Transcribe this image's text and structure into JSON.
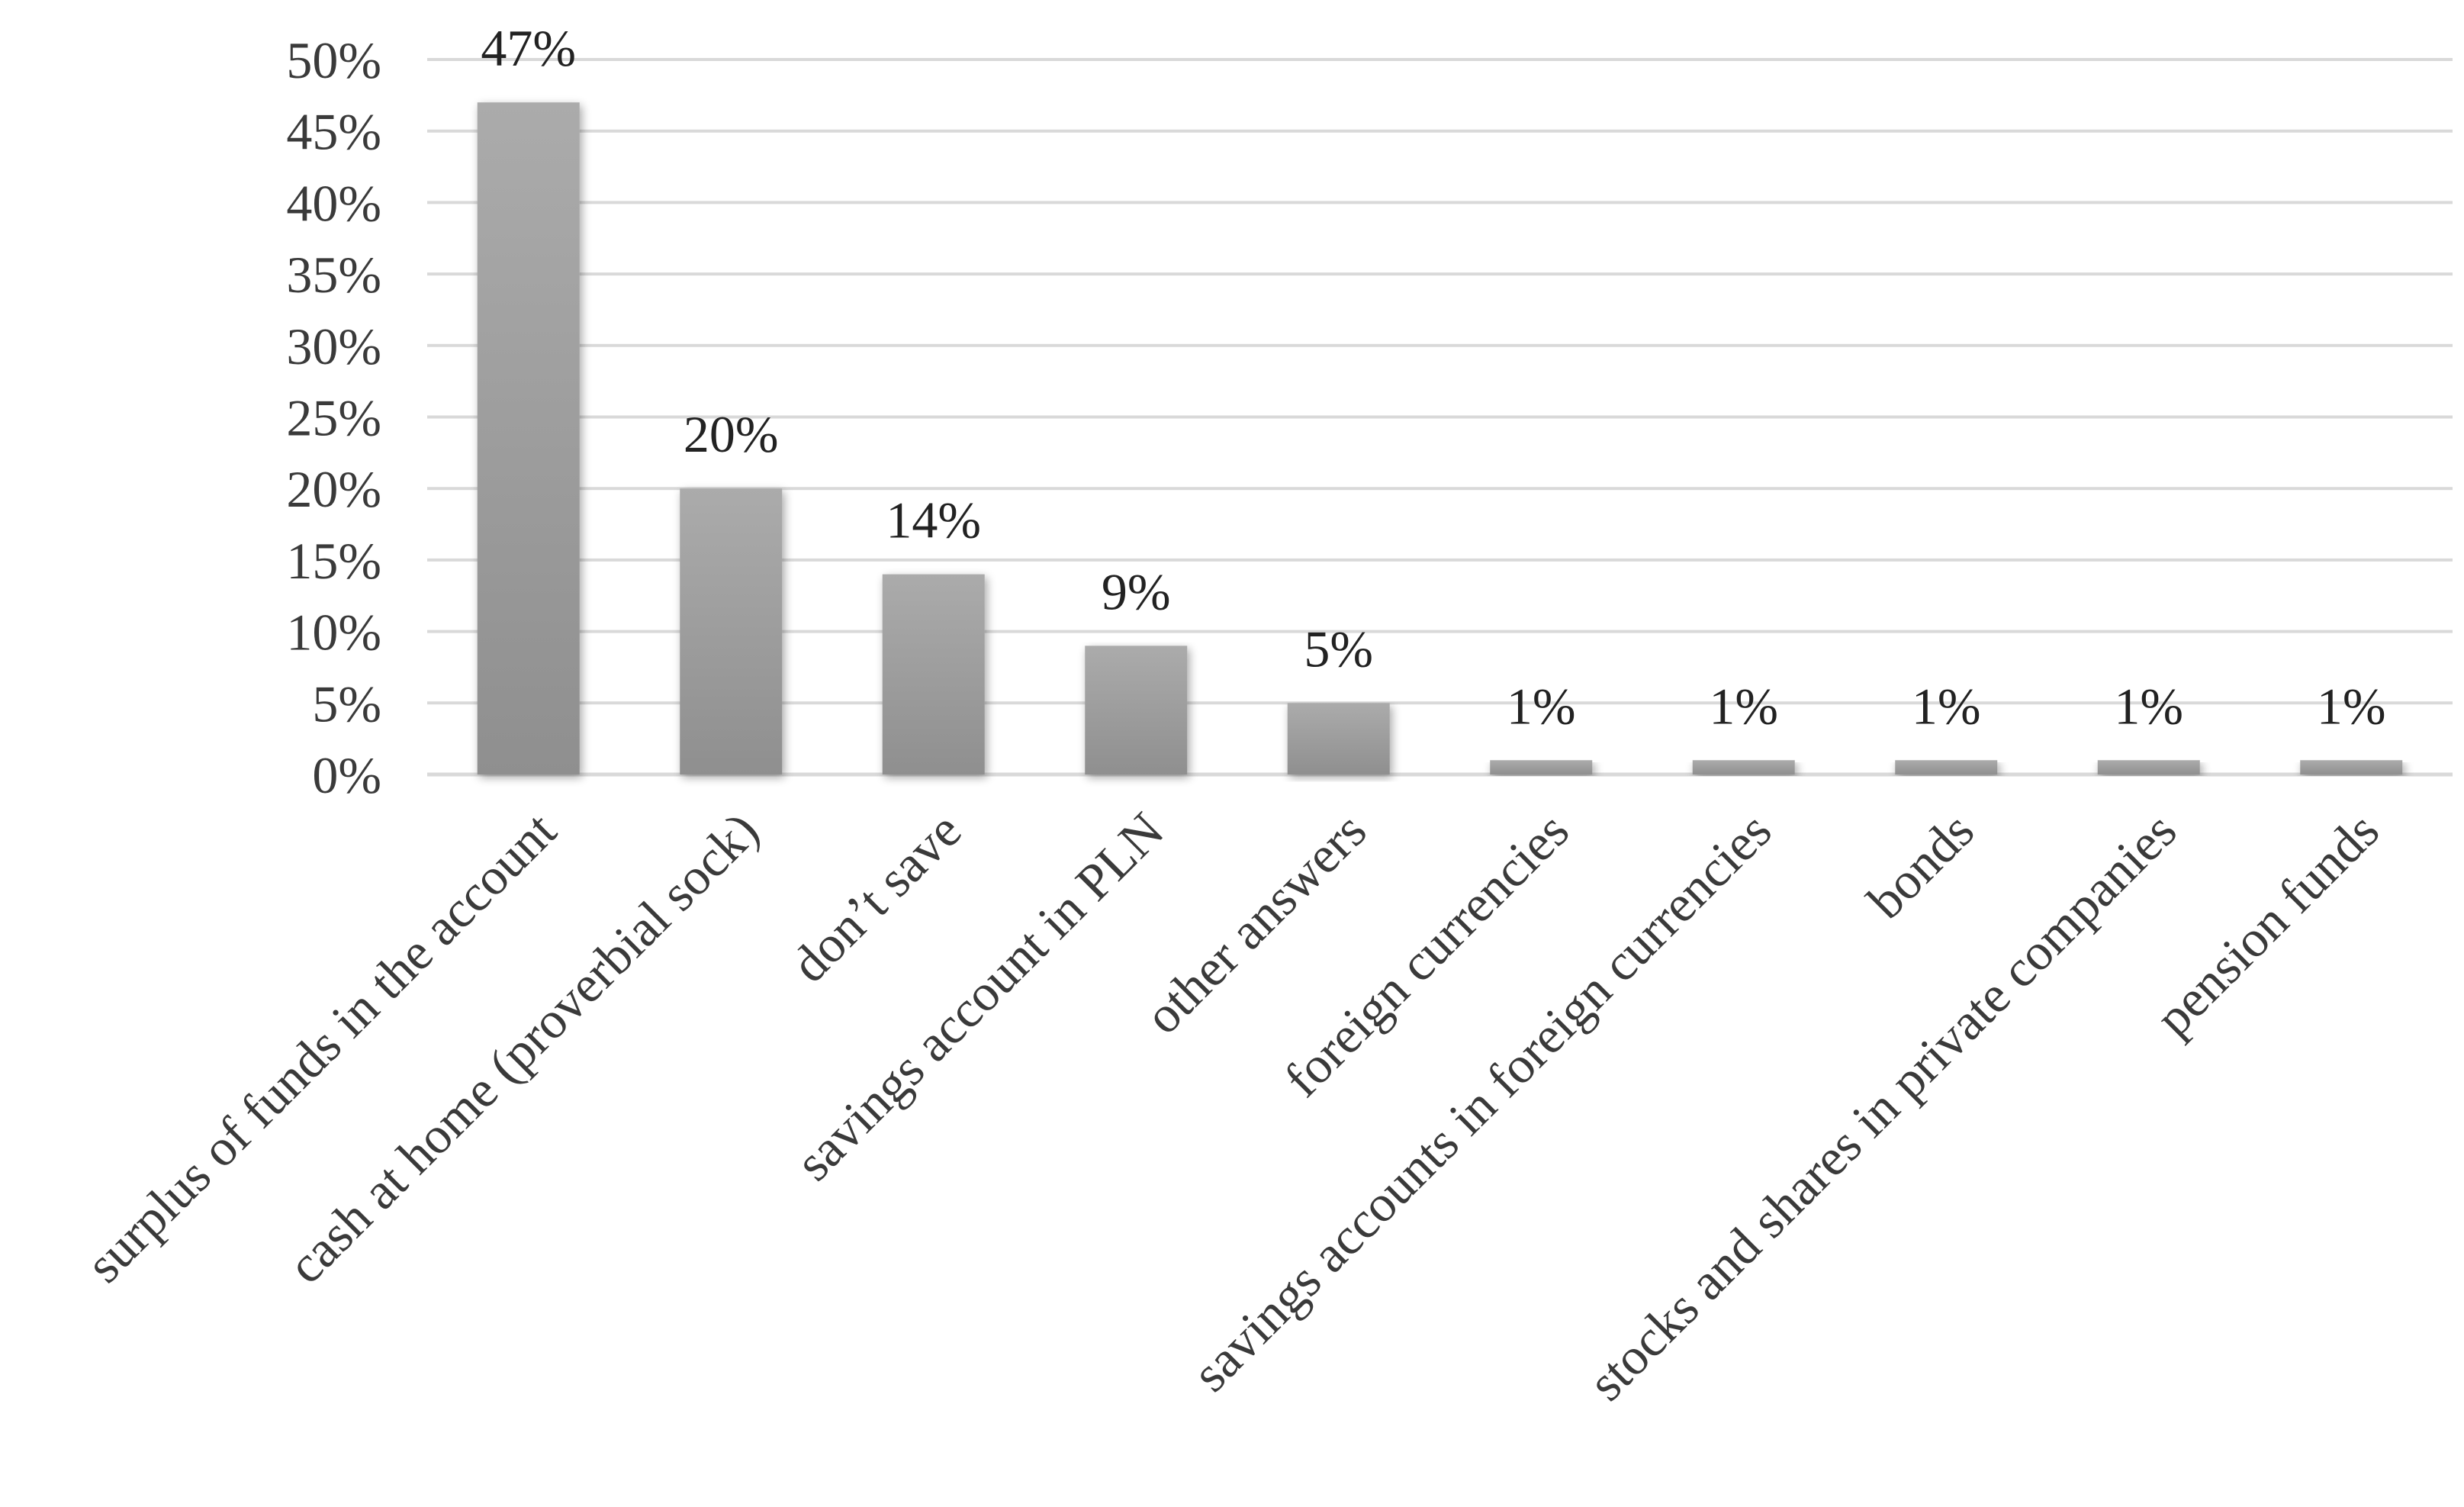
{
  "chart_data": {
    "type": "bar",
    "categories": [
      "surplus of funds in the account",
      "cash at home (proverbial sock)",
      "don’t save",
      "savings account in PLN",
      "other answers",
      "foreign currencies",
      "savings accounts in foreign currencies",
      "bonds",
      "stocks and shares in private companies",
      "pension funds"
    ],
    "values": [
      47,
      20,
      14,
      9,
      5,
      1,
      1,
      1,
      1,
      1
    ],
    "data_labels": [
      "47%",
      "20%",
      "14%",
      "9%",
      "5%",
      "1%",
      "1%",
      "1%",
      "1%",
      "1%"
    ],
    "y_ticks": [
      "0%",
      "5%",
      "10%",
      "15%",
      "20%",
      "25%",
      "30%",
      "35%",
      "40%",
      "45%",
      "50%"
    ],
    "ylim": [
      0,
      50
    ],
    "title": "",
    "xlabel": "",
    "ylabel": "",
    "grid": true,
    "legend": "none",
    "colors": {
      "bar_top": "#ababab",
      "bar_bottom": "#8f8f8f",
      "grid": "#d9d9d9",
      "text": "#3a3a3a"
    }
  }
}
